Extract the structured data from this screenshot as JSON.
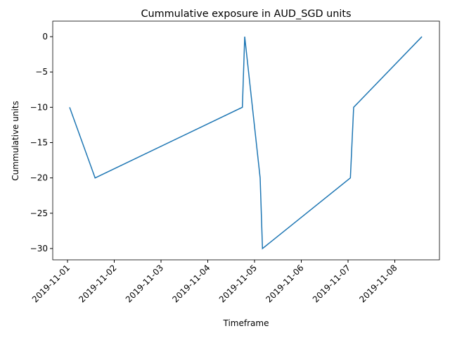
{
  "chart_data": {
    "type": "line",
    "title": "Cummulative exposure in AUD_SGD units",
    "x_label": "Timeframe",
    "y_label": "Cummulative units",
    "x": [
      0.045,
      0.59,
      3.74,
      3.79,
      4.12,
      4.17,
      6.05,
      6.12,
      7.58
    ],
    "series": [
      {
        "color": "#1f77b4",
        "values": [
          -10,
          -20,
          -10,
          0,
          -20,
          -30,
          -20,
          -10,
          0
        ]
      }
    ],
    "xlim": [
      -0.316,
      7.955
    ],
    "xticks": [
      {
        "value": 0,
        "label": "2019-11-01"
      },
      {
        "value": 1,
        "label": "2019-11-02"
      },
      {
        "value": 2,
        "label": "2019-11-03"
      },
      {
        "value": 3,
        "label": "2019-11-04"
      },
      {
        "value": 4,
        "label": "2019-11-05"
      },
      {
        "value": 5,
        "label": "2019-11-06"
      },
      {
        "value": 6,
        "label": "2019-11-07"
      },
      {
        "value": 7,
        "label": "2019-11-08"
      }
    ],
    "ylim": [
      -31.6,
      2.2
    ],
    "yticks": [
      0,
      {
        "value": -5,
        "label": "−5"
      },
      {
        "value": -10,
        "label": "−10"
      },
      {
        "value": -15,
        "label": "−15"
      },
      {
        "value": -20,
        "label": "−20"
      },
      {
        "value": -25,
        "label": "−25"
      },
      {
        "value": -30,
        "label": "−30"
      }
    ],
    "grid": false
  }
}
